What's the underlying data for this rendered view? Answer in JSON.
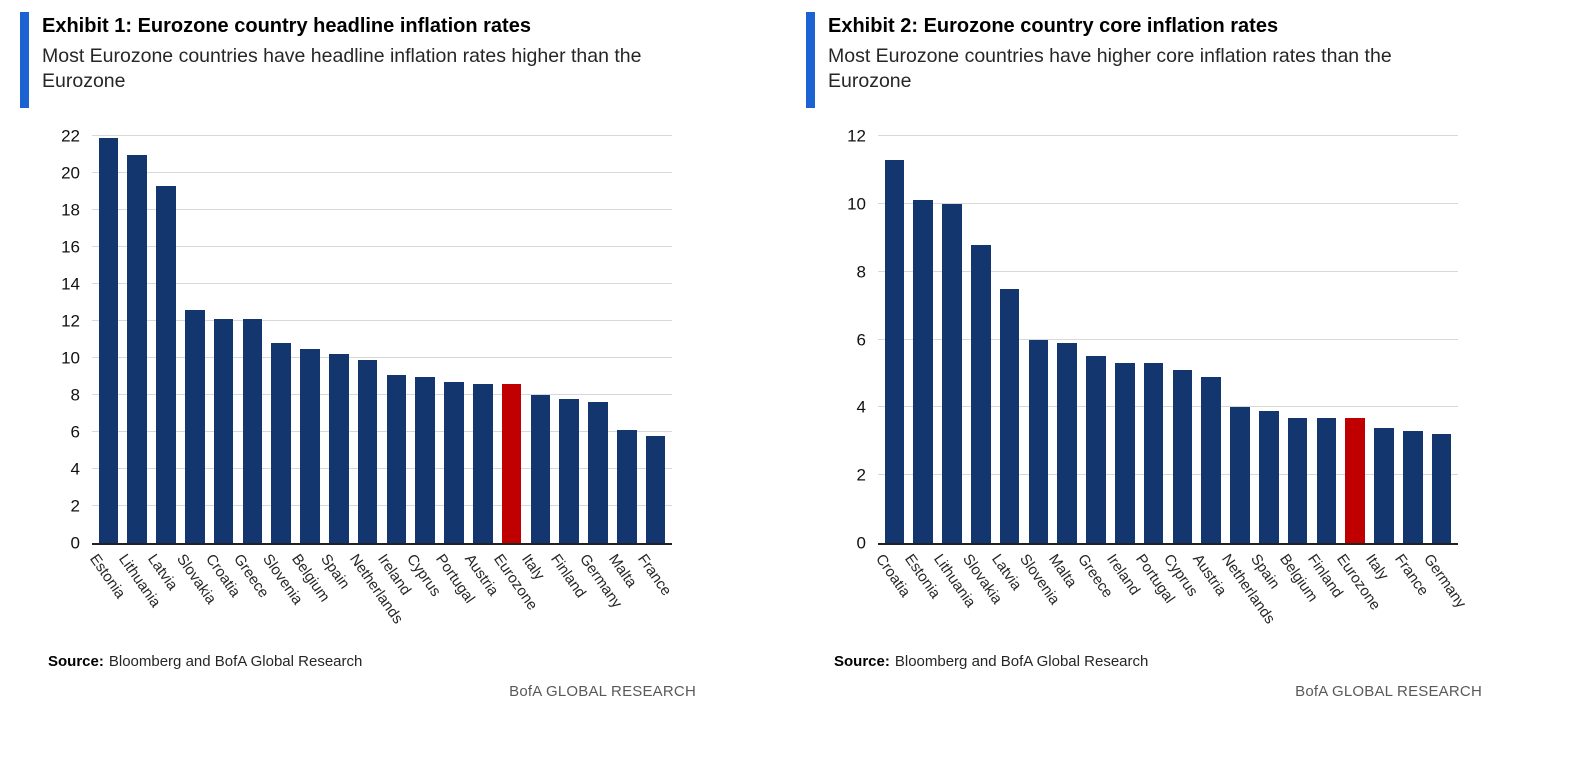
{
  "colors": {
    "bar_navy": "#14366e",
    "highlight_red": "#c00000",
    "accent_blue": "#1c62d3",
    "gridline": "#d8d8d8",
    "axis": "#222222",
    "footer_gray": "#595959"
  },
  "chart_data": [
    {
      "type": "bar",
      "exhibit_title": "Exhibit 1: Eurozone country headline inflation rates",
      "subtitle": "Most Eurozone countries have headline inflation rates higher than the Eurozone",
      "categories": [
        "Estonia",
        "Lithuania",
        "Latvia",
        "Slovakia",
        "Croatia",
        "Greece",
        "Slovenia",
        "Belgium",
        "Spain",
        "Netherlands",
        "Ireland",
        "Cyprus",
        "Portugal",
        "Austria",
        "Eurozone",
        "Italy",
        "Finland",
        "Germany",
        "Malta",
        "France"
      ],
      "values": [
        21.9,
        21.0,
        19.3,
        12.6,
        12.1,
        12.1,
        10.8,
        10.5,
        10.2,
        9.9,
        9.1,
        9.0,
        8.7,
        8.6,
        8.6,
        8.0,
        7.8,
        7.6,
        6.1,
        5.8
      ],
      "highlight_category": "Eurozone",
      "ylim": [
        0,
        22
      ],
      "ytick_step": 2,
      "grid": true,
      "legend": "none",
      "xlabel": "",
      "ylabel": "",
      "source_label": "Source:",
      "source_text": "Bloomberg and BofA Global Research",
      "footer": "BofA GLOBAL RESEARCH"
    },
    {
      "type": "bar",
      "exhibit_title": "Exhibit 2: Eurozone country core inflation rates",
      "subtitle": "Most Eurozone countries have higher core inflation rates than the Eurozone",
      "categories": [
        "Croatia",
        "Estonia",
        "Lithuania",
        "Slovakia",
        "Latvia",
        "Slovenia",
        "Malta",
        "Greece",
        "Ireland",
        "Portugal",
        "Cyprus",
        "Austria",
        "Netherlands",
        "Spain",
        "Belgium",
        "Finland",
        "Eurozone",
        "Italy",
        "France",
        "Germany"
      ],
      "values": [
        11.3,
        10.1,
        10.0,
        8.8,
        7.5,
        6.0,
        5.9,
        5.5,
        5.3,
        5.3,
        5.1,
        4.9,
        4.0,
        3.9,
        3.7,
        3.7,
        3.7,
        3.4,
        3.3,
        3.2
      ],
      "highlight_category": "Eurozone",
      "ylim": [
        0,
        12
      ],
      "ytick_step": 2,
      "grid": true,
      "legend": "none",
      "xlabel": "",
      "ylabel": "",
      "source_label": "Source:",
      "source_text": "Bloomberg and BofA Global Research",
      "footer": "BofA GLOBAL RESEARCH"
    }
  ]
}
